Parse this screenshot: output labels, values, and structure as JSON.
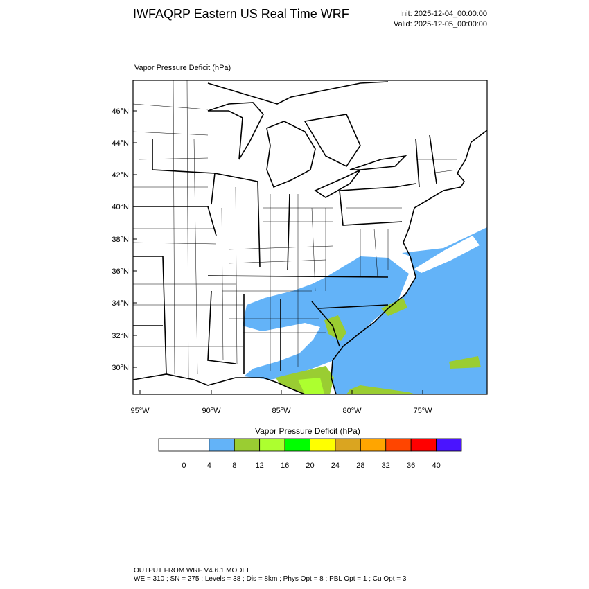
{
  "header": {
    "title": "IWFAQRP Eastern US Real Time WRF",
    "init": "Init: 2025-12-04_00:00:00",
    "valid": "Valid: 2025-12-05_00:00:00"
  },
  "map": {
    "title": "Vapor Pressure Deficit   (hPa)",
    "lat_labels": [
      "46°N",
      "44°N",
      "42°N",
      "40°N",
      "38°N",
      "36°N",
      "34°N",
      "32°N",
      "30°N"
    ],
    "lon_labels": [
      "95°W",
      "90°W",
      "85°W",
      "80°W",
      "75°W"
    ]
  },
  "colorbar": {
    "title": "Vapor Pressure Deficit  (hPa)",
    "colors": [
      "#ffffff",
      "#ffffff",
      "#63b3f8",
      "#9acd32",
      "#adff2f",
      "#00ff00",
      "#ffff00",
      "#daa520",
      "#ffa500",
      "#ff4500",
      "#ff0000",
      "#4a14ff"
    ],
    "labels": [
      0,
      4,
      8,
      12,
      16,
      20,
      24,
      28,
      32,
      36,
      40
    ]
  },
  "footer": {
    "line1": "OUTPUT FROM WRF V4.6.1 MODEL",
    "line2": "WE = 310 ; SN = 275 ; Levels = 38 ; Dis = 8km ; Phys Opt = 8 ; PBL Opt = 1 ; Cu Opt = 3"
  }
}
